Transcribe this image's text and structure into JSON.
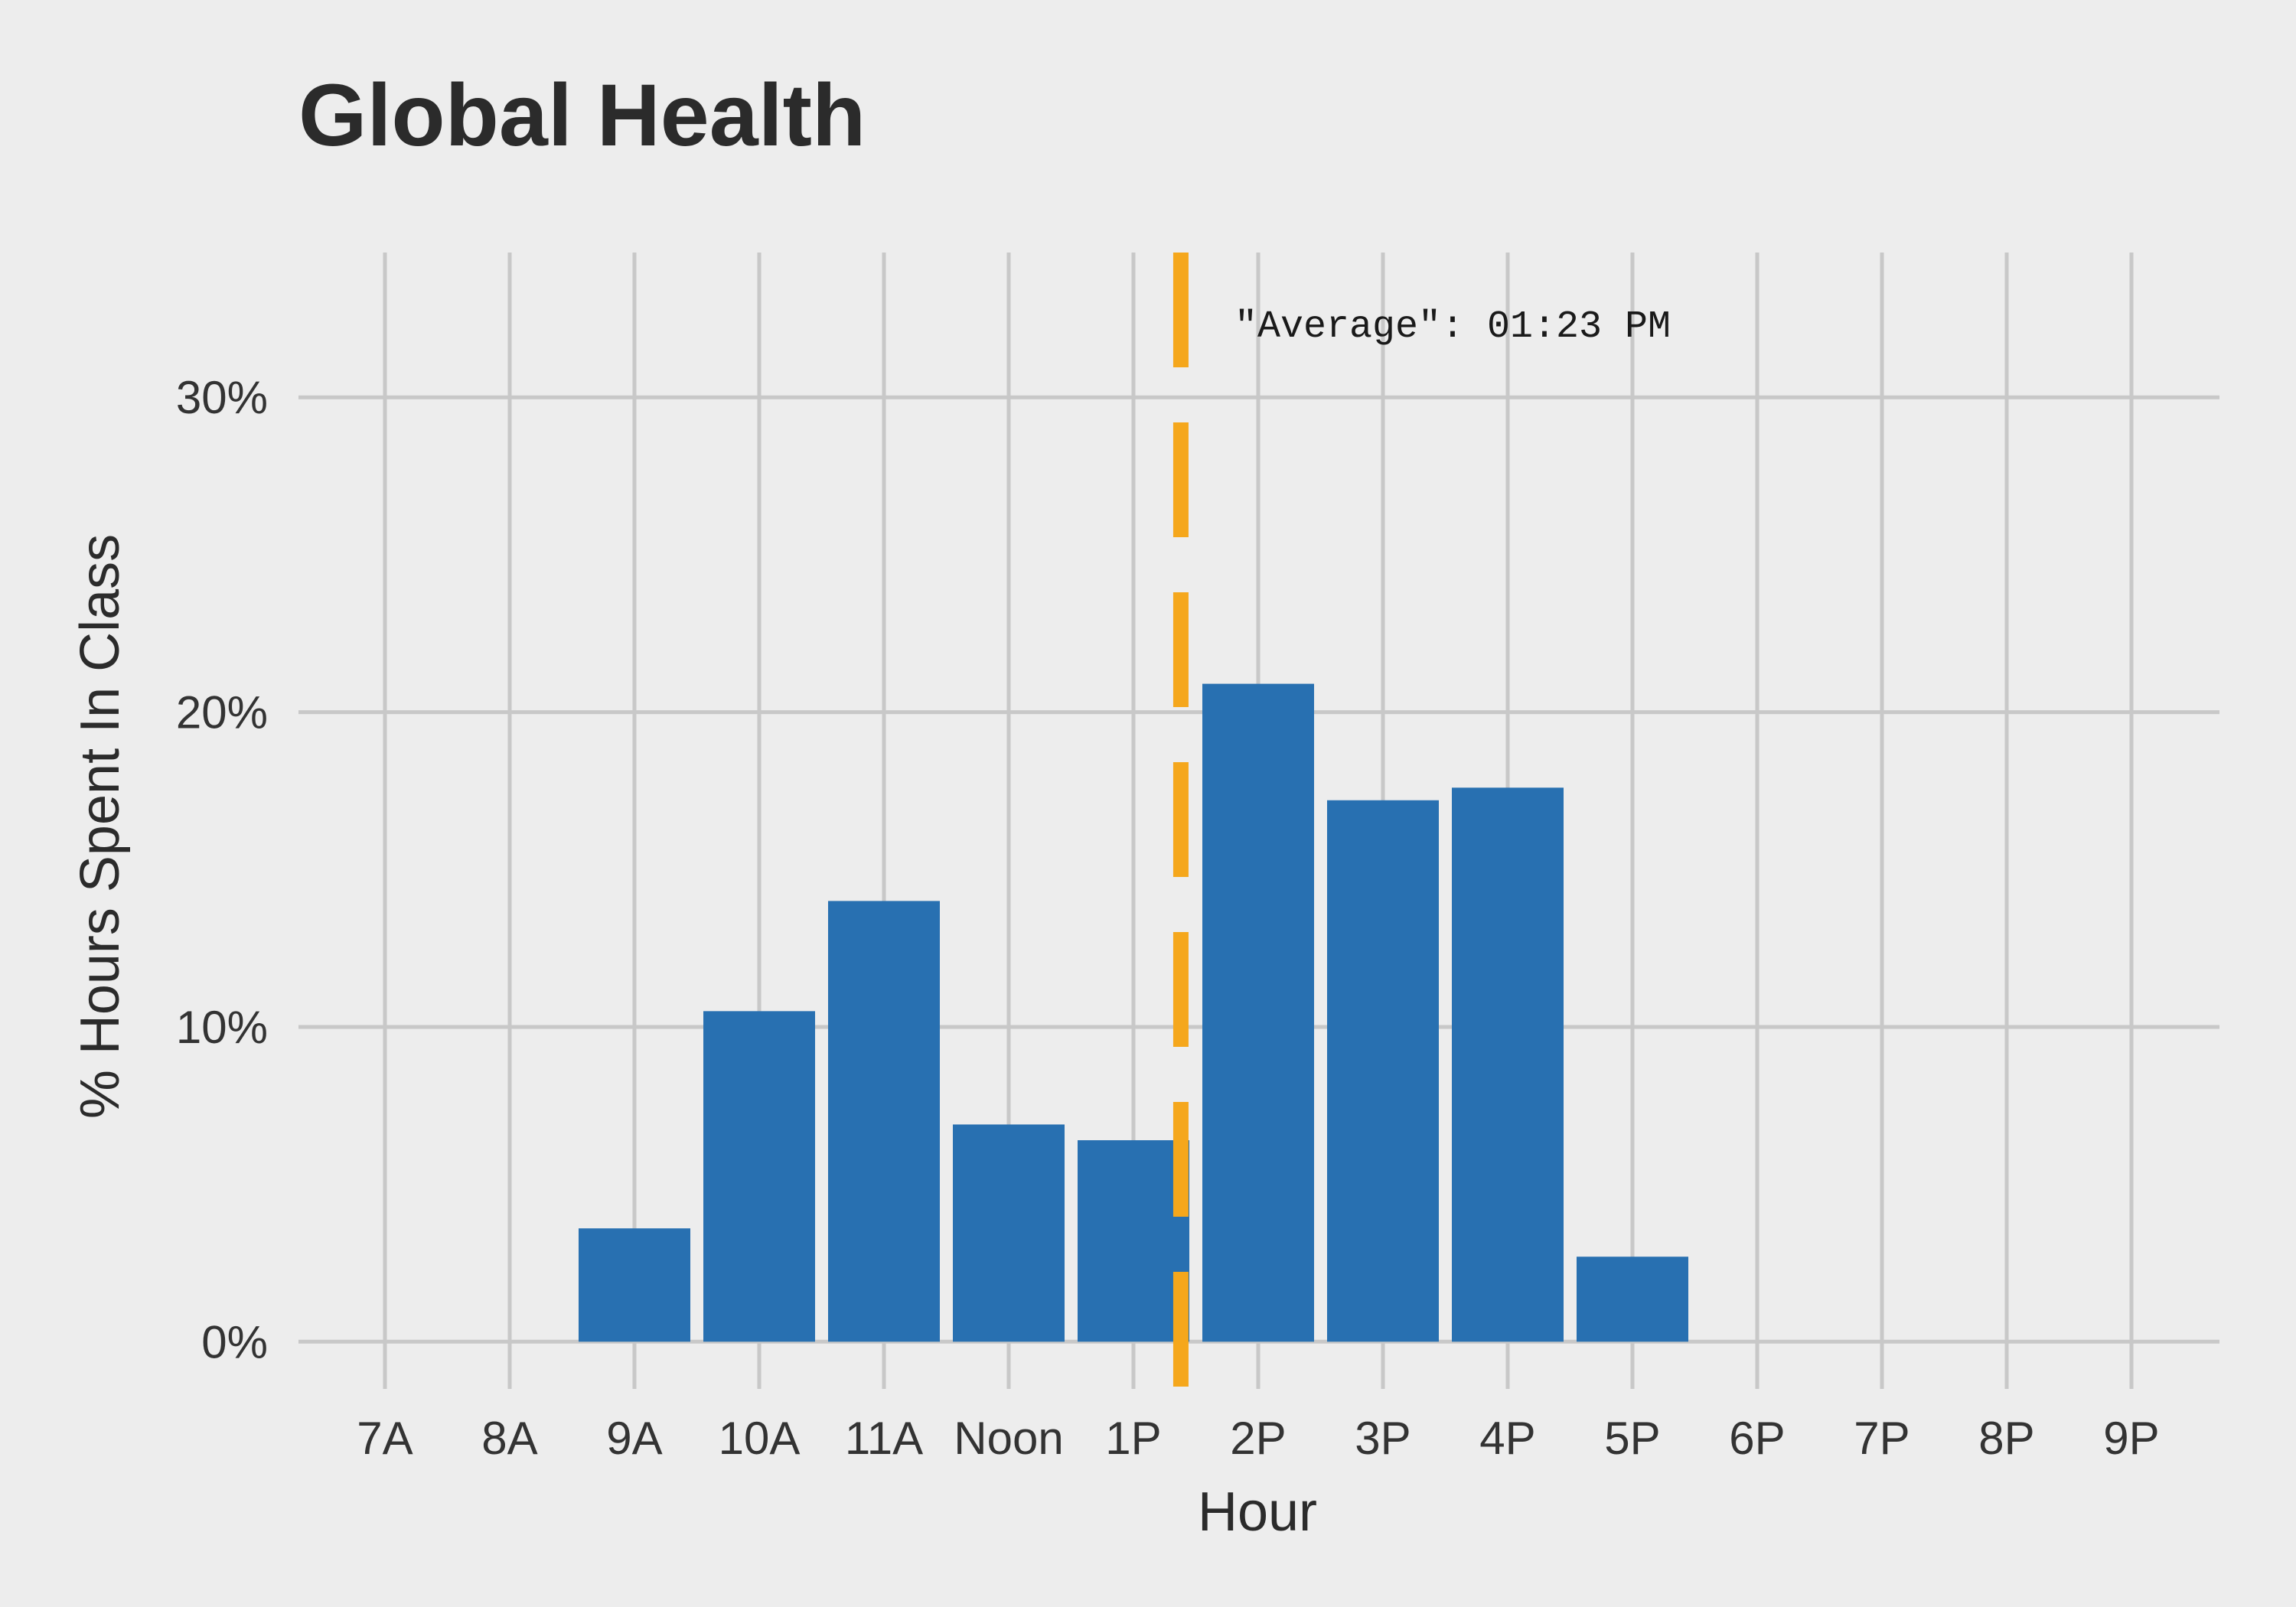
{
  "chart_data": {
    "type": "bar",
    "title": "Global Health",
    "xlabel": "Hour",
    "ylabel": "% Hours Spent In Class",
    "categories": [
      "7A",
      "8A",
      "9A",
      "10A",
      "11A",
      "Noon",
      "1P",
      "2P",
      "3P",
      "4P",
      "5P",
      "6P",
      "7P",
      "8P",
      "9P"
    ],
    "values": [
      0,
      0,
      3.6,
      10.5,
      14.0,
      6.9,
      6.4,
      20.9,
      17.2,
      17.6,
      2.7,
      0,
      0,
      0,
      0
    ],
    "yticks": [
      0,
      10,
      20,
      30
    ],
    "ytick_labels": [
      "0%",
      "10%",
      "20%",
      "30%"
    ],
    "ylim": [
      -1.5,
      34.6
    ],
    "grid": true,
    "colors": {
      "bar": "#2870b1",
      "average_line": "#f5a71c",
      "grid": "#c8c8c8",
      "background": "#ededed"
    },
    "average_line": {
      "x": 13.38,
      "label": "\"Average\": 01:23 PM"
    }
  }
}
